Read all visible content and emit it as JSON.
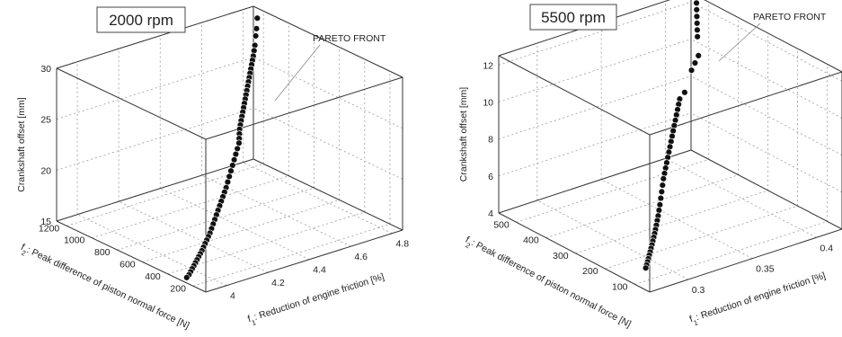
{
  "chart_data": [
    {
      "type": "scatter",
      "title": "2000 rpm",
      "annotation": "PARETO FRONT",
      "xlabel": "f1: Reduction of engine friction [%]",
      "ylabel": "f2: Peak difference of piston normal force [N]",
      "zlabel": "Crankshaft offset [mm]",
      "xlim": [
        3.9,
        4.85
      ],
      "ylim": [
        100,
        1280
      ],
      "zlim": [
        15,
        30
      ],
      "xticks": [
        "4",
        "4.2",
        "4.4",
        "4.6",
        "4.8"
      ],
      "xtick_values": [
        4.0,
        4.2,
        4.4,
        4.6,
        4.8
      ],
      "yticks": [
        "200",
        "400",
        "600",
        "800",
        "1000",
        "1200"
      ],
      "ytick_values": [
        200,
        400,
        600,
        800,
        1000,
        1200
      ],
      "zticks": [
        "15",
        "20",
        "25",
        "30"
      ],
      "ztick_values": [
        15,
        20,
        25,
        30
      ],
      "grid": true,
      "series": [
        {
          "x": [
            4.82,
            4.81,
            4.8,
            4.79,
            4.78,
            4.77,
            4.76,
            4.75,
            4.74,
            4.73,
            4.72,
            4.71,
            4.7,
            4.69,
            4.68,
            4.67,
            4.66,
            4.65,
            4.64,
            4.63,
            4.62,
            4.61,
            4.6,
            4.59,
            4.58,
            4.57,
            4.55,
            4.53,
            4.51,
            4.49,
            4.47,
            4.45,
            4.43,
            4.41,
            4.39,
            4.37,
            4.35,
            4.33,
            4.31,
            4.29,
            4.27,
            4.25,
            4.23,
            4.21,
            4.19,
            4.17,
            4.15,
            4.13,
            4.11,
            4.09,
            4.07,
            4.05,
            4.03,
            4.01,
            3.99,
            3.97,
            3.95,
            3.93
          ],
          "y": [
            1200,
            1190,
            1180,
            1170,
            1160,
            1150,
            1140,
            1130,
            1120,
            1110,
            1100,
            1090,
            1080,
            1070,
            1060,
            1050,
            1040,
            1030,
            1020,
            1010,
            1000,
            990,
            980,
            965,
            950,
            935,
            915,
            895,
            875,
            855,
            835,
            815,
            795,
            775,
            755,
            735,
            715,
            695,
            675,
            655,
            635,
            615,
            595,
            575,
            555,
            535,
            515,
            495,
            475,
            455,
            435,
            415,
            395,
            375,
            355,
            335,
            315,
            300
          ],
          "z": [
            29.5,
            28.6,
            28.0,
            27.2,
            26.8,
            26.4,
            26.1,
            25.8,
            25.5,
            25.2,
            24.9,
            24.6,
            24.3,
            24.0,
            23.7,
            23.4,
            23.1,
            22.8,
            22.5,
            22.2,
            21.9,
            21.6,
            21.3,
            21.0,
            20.7,
            20.4,
            20.1,
            19.8,
            19.5,
            19.2,
            18.9,
            18.6,
            18.3,
            18.0,
            17.8,
            17.6,
            17.4,
            17.2,
            17.0,
            16.8,
            16.6,
            16.4,
            16.2,
            16.0,
            15.9,
            15.8,
            15.7,
            15.6,
            15.5,
            15.45,
            15.4,
            15.35,
            15.3,
            15.25,
            15.2,
            15.15,
            15.1,
            15.05
          ]
        }
      ]
    },
    {
      "type": "scatter",
      "title": "5500 rpm",
      "annotation": "PARETO FRONT",
      "xlabel": "f1: Reduction of engine friction [%]",
      "ylabel": "f2: Peak difference of piston normal force [N]",
      "zlabel": "Crankshaft offset [mm]",
      "xlim": [
        0.27,
        0.42
      ],
      "ylim": [
        50,
        560
      ],
      "zlim": [
        4,
        12.5
      ],
      "xticks": [
        "0.3",
        "0.35",
        "0.4"
      ],
      "xtick_values": [
        0.3,
        0.35,
        0.4
      ],
      "yticks": [
        "100",
        "200",
        "300",
        "400",
        "500"
      ],
      "ytick_values": [
        100,
        200,
        300,
        400,
        500
      ],
      "zticks": [
        "4",
        "6",
        "8",
        "10",
        "12"
      ],
      "ztick_values": [
        4,
        6,
        8,
        10,
        12
      ],
      "grid": true,
      "series": [
        {
          "x": [
            0.415,
            0.414,
            0.413,
            0.412,
            0.411,
            0.41,
            0.405,
            0.4,
            0.395,
            0.385,
            0.38,
            0.378,
            0.376,
            0.374,
            0.372,
            0.37,
            0.368,
            0.366,
            0.364,
            0.362,
            0.36,
            0.358,
            0.356,
            0.354,
            0.352,
            0.35,
            0.347,
            0.344,
            0.341,
            0.338,
            0.335,
            0.332,
            0.329,
            0.326,
            0.323,
            0.32,
            0.317,
            0.314,
            0.311,
            0.308,
            0.305,
            0.302,
            0.299,
            0.296,
            0.293,
            0.29
          ],
          "y": [
            520,
            515,
            510,
            505,
            500,
            495,
            470,
            460,
            450,
            430,
            425,
            420,
            415,
            410,
            405,
            400,
            395,
            390,
            385,
            380,
            375,
            370,
            365,
            360,
            355,
            350,
            340,
            330,
            320,
            310,
            300,
            290,
            280,
            270,
            260,
            250,
            240,
            230,
            220,
            210,
            200,
            190,
            180,
            170,
            160,
            150
          ],
          "z": [
            12.4,
            12.1,
            11.8,
            11.5,
            11.2,
            10.9,
            10.2,
            10.0,
            9.8,
            9.0,
            8.8,
            8.6,
            8.4,
            8.2,
            8.0,
            7.8,
            7.6,
            7.4,
            7.2,
            7.0,
            6.8,
            6.6,
            6.4,
            6.2,
            6.0,
            5.8,
            5.6,
            5.4,
            5.2,
            5.0,
            4.85,
            4.7,
            4.6,
            4.5,
            4.42,
            4.35,
            4.3,
            4.25,
            4.2,
            4.16,
            4.12,
            4.09,
            4.06,
            4.04,
            4.02,
            4.01
          ]
        }
      ]
    }
  ]
}
